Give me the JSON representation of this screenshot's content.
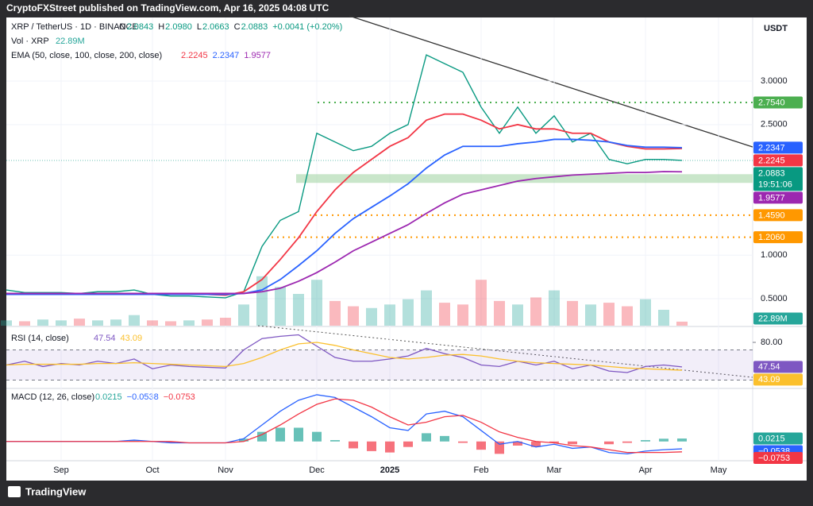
{
  "header": "CryptoFXStreet published on TradingView.com, Apr 16, 2025 04:08 UTC",
  "footer": "TradingView",
  "chart_data": [
    {
      "type": "line",
      "symbol": "XRP / TetherUS · 1D · BINANCE",
      "ohlc": [
        {
          "label": "O",
          "value": "2.0843"
        },
        {
          "label": "H",
          "value": "2.0980"
        },
        {
          "label": "L",
          "value": "2.0663"
        },
        {
          "label": "C",
          "value": "2.0883"
        }
      ],
      "change": "+0.0041 (+0.20%)",
      "volume_title": "Vol · XRP",
      "ema_title": "EMA (50, close, 100, close, 200, close)",
      "currency": "USDT",
      "categories": [
        null,
        null,
        null,
        "Sep",
        null,
        null,
        null,
        null,
        "Oct",
        null,
        null,
        null,
        "Nov",
        null,
        null,
        null,
        null,
        "Dec",
        null,
        null,
        null,
        "2025",
        null,
        null,
        null,
        null,
        "Feb",
        null,
        null,
        null,
        "Mar",
        null,
        null,
        null,
        null,
        "Apr",
        null,
        null,
        null,
        "May"
      ],
      "ylim": [
        0.19,
        3.73
      ],
      "yticks": [
        {
          "value": 3,
          "label": "3.0000"
        },
        {
          "value": 2.5,
          "label": "2.5000"
        },
        {
          "value": 1,
          "label": "1.0000"
        },
        {
          "value": 0.5,
          "label": "0.5000"
        }
      ],
      "grid": true,
      "series": [
        {
          "color": "#089981",
          "values": [
            0.6,
            0.57,
            0.57,
            0.57,
            0.56,
            0.58,
            0.58,
            0.6,
            0.55,
            0.53,
            0.53,
            0.52,
            0.51,
            0.58,
            1.1,
            1.4,
            1.5,
            2.4,
            2.3,
            2.2,
            2.25,
            2.4,
            2.5,
            3.3,
            3.2,
            3.1,
            2.7,
            2.4,
            2.7,
            2.4,
            2.6,
            2.3,
            2.4,
            2.1,
            2.05,
            2.1,
            2.1,
            2.0883,
            null,
            null
          ],
          "last_label": "2.0883",
          "countdown": "19:51:06"
        },
        {
          "color": "#f23645",
          "values": [
            0.56,
            0.56,
            0.56,
            0.56,
            0.56,
            0.56,
            0.56,
            0.56,
            0.56,
            0.55,
            0.55,
            0.55,
            0.54,
            0.58,
            0.72,
            0.95,
            1.2,
            1.5,
            1.75,
            1.95,
            2.1,
            2.25,
            2.35,
            2.55,
            2.62,
            2.62,
            2.55,
            2.45,
            2.5,
            2.45,
            2.45,
            2.4,
            2.4,
            2.3,
            2.25,
            2.22,
            2.22,
            2.2245,
            null,
            null
          ],
          "last_label": "2.2245"
        },
        {
          "color": "#2962ff",
          "values": [
            0.55,
            0.55,
            0.55,
            0.55,
            0.55,
            0.55,
            0.55,
            0.55,
            0.55,
            0.55,
            0.55,
            0.55,
            0.55,
            0.56,
            0.6,
            0.72,
            0.88,
            1.05,
            1.25,
            1.42,
            1.55,
            1.68,
            1.82,
            2.0,
            2.15,
            2.25,
            2.25,
            2.25,
            2.28,
            2.3,
            2.33,
            2.33,
            2.32,
            2.3,
            2.26,
            2.24,
            2.24,
            2.2347,
            null,
            null
          ],
          "last_label": "2.2347"
        },
        {
          "color": "#9c27b0",
          "values": [
            0.56,
            0.56,
            0.56,
            0.56,
            0.56,
            0.56,
            0.56,
            0.56,
            0.56,
            0.56,
            0.56,
            0.56,
            0.56,
            0.56,
            0.58,
            0.62,
            0.7,
            0.8,
            0.92,
            1.05,
            1.15,
            1.25,
            1.35,
            1.48,
            1.6,
            1.7,
            1.75,
            1.8,
            1.85,
            1.88,
            1.9,
            1.92,
            1.93,
            1.94,
            1.95,
            1.95,
            1.96,
            1.9577,
            null,
            null
          ],
          "last_label": "1.9577"
        }
      ],
      "levels": [
        {
          "value": 2.754,
          "label": "2.7540",
          "color": "#4caf50"
        },
        {
          "value": 1.459,
          "label": "1.4590",
          "color": "#ff9800"
        },
        {
          "value": 1.206,
          "label": "1.2060",
          "color": "#ff9800"
        }
      ],
      "support_zone": [
        1.83,
        1.93
      ],
      "volume": {
        "color": "#26a69a",
        "down_color": "#f23645",
        "ylim": [
          0,
          450
        ],
        "values": [
          30,
          25,
          35,
          30,
          40,
          30,
          35,
          60,
          30,
          25,
          30,
          35,
          45,
          120,
          280,
          220,
          180,
          260,
          140,
          110,
          100,
          120,
          150,
          200,
          130,
          120,
          260,
          140,
          120,
          160,
          200,
          140,
          120,
          130,
          110,
          150,
          90,
          22.89,
          null,
          null
        ],
        "last_label": "22.89M"
      }
    },
    {
      "type": "line",
      "title": "RSI (14, close)",
      "ylim": [
        20,
        100
      ],
      "yticks": [
        {
          "value": 80,
          "label": "80.00"
        }
      ],
      "band": [
        30,
        70
      ],
      "series": [
        {
          "color": "#7e57c2",
          "values": [
            50,
            55,
            48,
            52,
            50,
            55,
            52,
            58,
            45,
            50,
            48,
            47,
            46,
            70,
            85,
            88,
            90,
            75,
            60,
            55,
            55,
            58,
            62,
            72,
            65,
            60,
            50,
            48,
            55,
            50,
            55,
            45,
            50,
            42,
            40,
            48,
            50,
            47.54,
            null,
            null
          ],
          "last_label": "47.54"
        },
        {
          "color": "#fbc02d",
          "values": [
            50,
            51,
            51,
            51,
            51,
            52,
            52,
            53,
            52,
            51,
            50,
            49,
            48,
            52,
            60,
            70,
            78,
            80,
            76,
            70,
            65,
            60,
            58,
            60,
            63,
            64,
            62,
            58,
            55,
            53,
            52,
            51,
            50,
            48,
            46,
            45,
            44,
            43.09,
            null,
            null
          ],
          "last_label": "43.09"
        }
      ]
    },
    {
      "type": "line",
      "title": "MACD (12, 26, close)",
      "ylim": [
        -0.14,
        0.38
      ],
      "histogram": {
        "color": "#26a69a",
        "down_color": "#f23645",
        "values": [
          0,
          0,
          0,
          0,
          0,
          0,
          0,
          0.01,
          0,
          -0.01,
          0,
          0,
          0,
          0.02,
          0.07,
          0.1,
          0.1,
          0.07,
          0.01,
          -0.05,
          -0.07,
          -0.08,
          -0.04,
          0.06,
          0.04,
          -0.01,
          -0.06,
          -0.09,
          -0.03,
          -0.04,
          -0.01,
          -0.02,
          0,
          -0.02,
          -0.01,
          0.01,
          0.02,
          0.0215,
          null,
          null
        ],
        "last_label": "0.0215"
      },
      "series": [
        {
          "color": "#2962ff",
          "values": [
            0,
            0,
            0,
            0,
            0,
            0,
            0,
            0.01,
            0,
            -0.01,
            -0.01,
            -0.01,
            -0.01,
            0.02,
            0.12,
            0.22,
            0.3,
            0.34,
            0.32,
            0.25,
            0.18,
            0.1,
            0.08,
            0.2,
            0.22,
            0.18,
            0.08,
            -0.02,
            0,
            -0.04,
            -0.02,
            -0.05,
            -0.04,
            -0.08,
            -0.09,
            -0.07,
            -0.06,
            -0.0538,
            null,
            null
          ],
          "last_label": "−0.0538"
        },
        {
          "color": "#f23645",
          "values": [
            0,
            0,
            0,
            0,
            0,
            0,
            0,
            0,
            0,
            0,
            -0.01,
            -0.01,
            -0.01,
            0,
            0.05,
            0.12,
            0.2,
            0.27,
            0.31,
            0.3,
            0.25,
            0.18,
            0.12,
            0.14,
            0.18,
            0.19,
            0.14,
            0.07,
            0.03,
            0,
            -0.01,
            -0.03,
            -0.04,
            -0.06,
            -0.08,
            -0.08,
            -0.08,
            -0.0753,
            null,
            null
          ],
          "last_label": "−0.0753"
        }
      ]
    }
  ]
}
